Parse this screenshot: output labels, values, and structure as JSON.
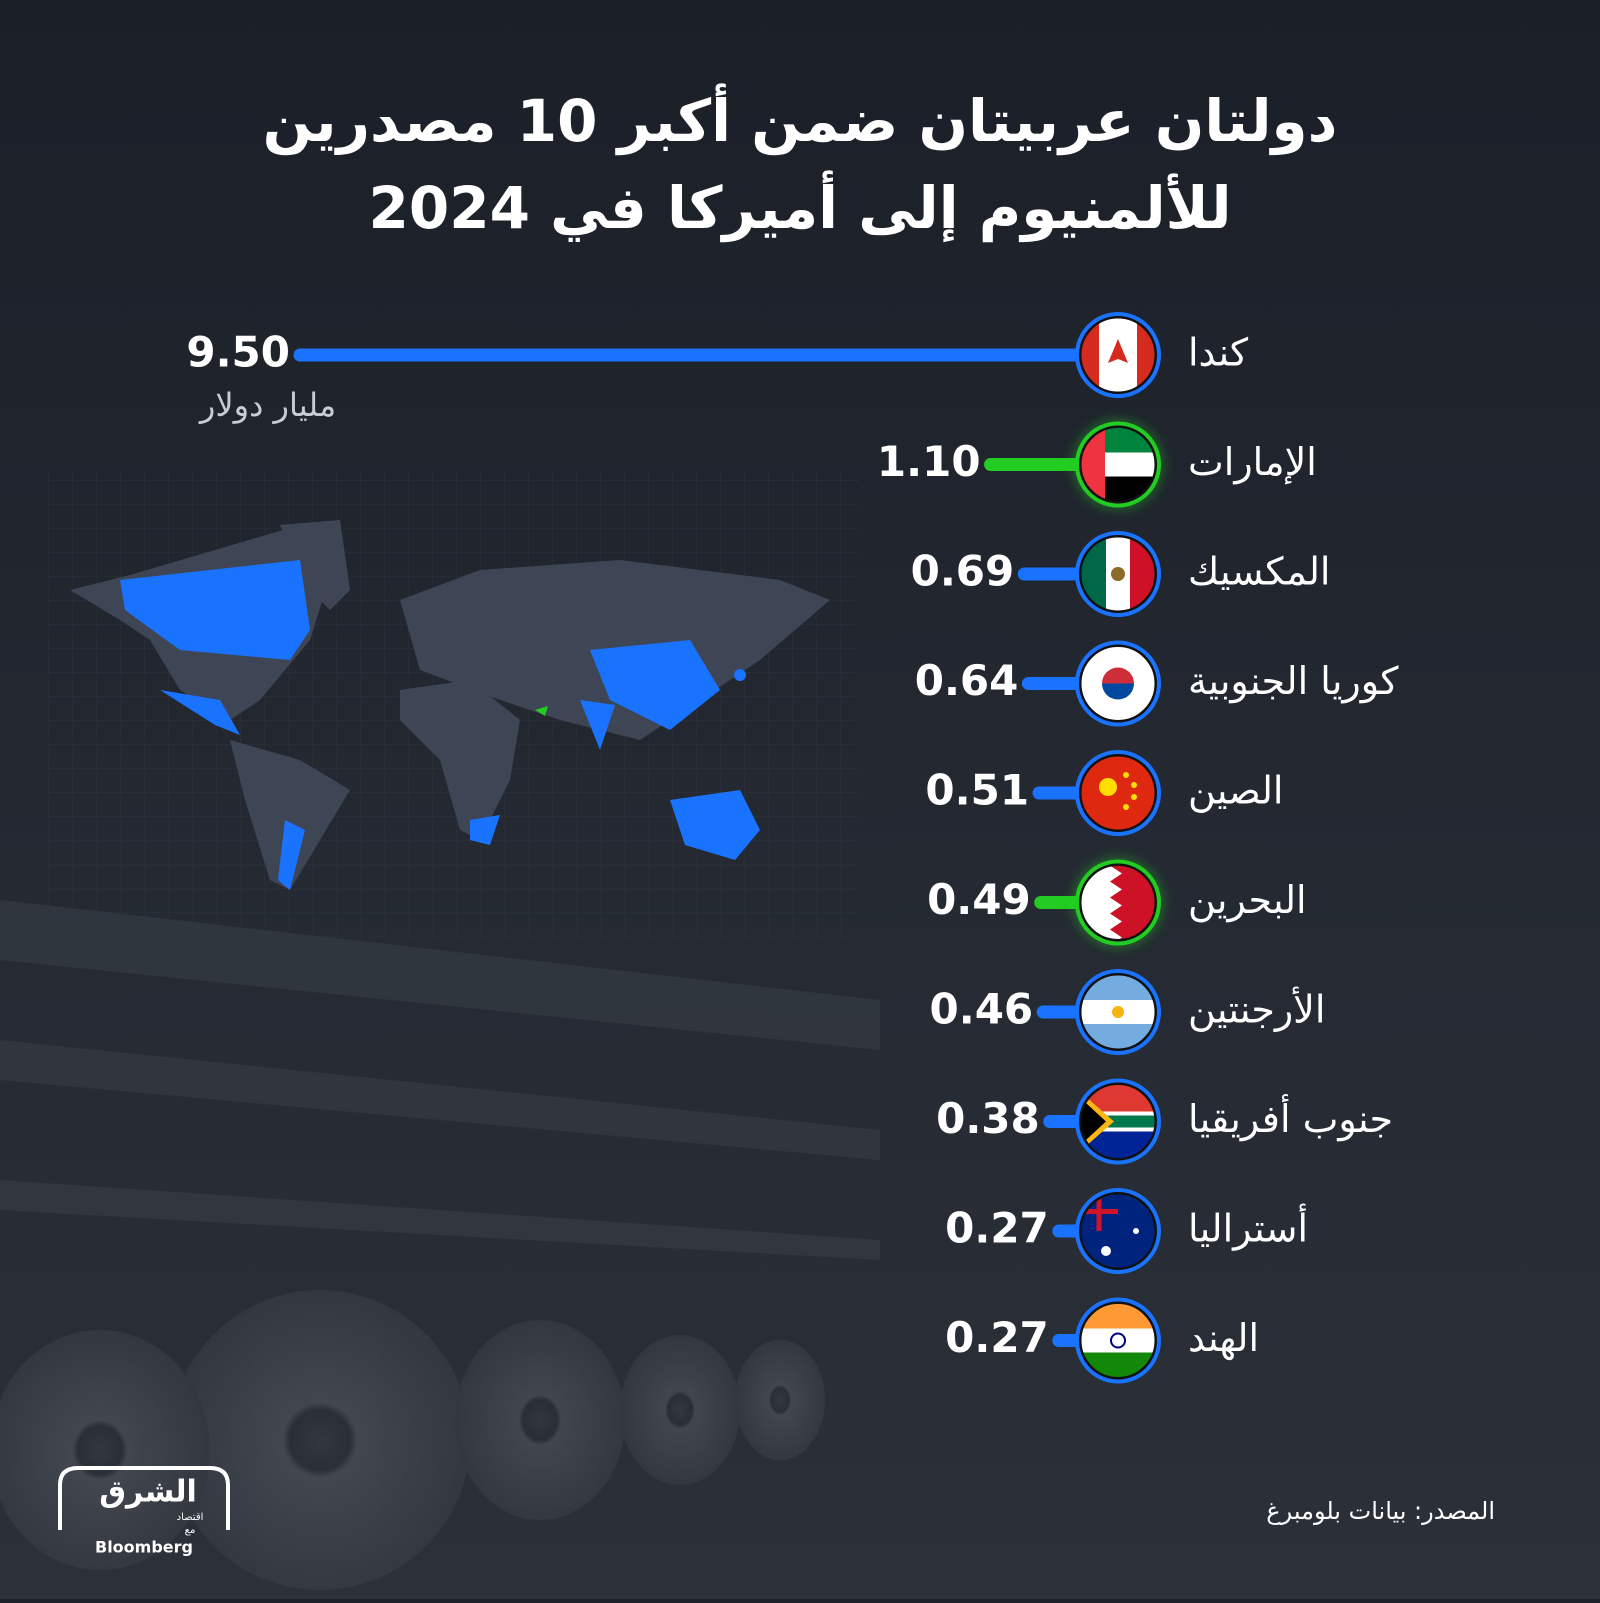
{
  "chart_data": {
    "type": "bar",
    "title": [
      "دولتان عربيتان ضمن أكبر 10 مصدرين",
      "للألمنيوم إلى أميركا في 2024"
    ],
    "unit": "مليار دولار",
    "categories": [
      "كندا",
      "الإمارات",
      "المكسيك",
      "كوريا الجنوبية",
      "الصين",
      "البحرين",
      "الأرجنتين",
      "جنوب أفريقيا",
      "أستراليا",
      "الهند"
    ],
    "values": [
      9.5,
      1.1,
      0.69,
      0.64,
      0.51,
      0.49,
      0.46,
      0.38,
      0.27,
      0.27
    ],
    "value_labels": [
      "9.50",
      "1.10",
      "0.69",
      "0.64",
      "0.51",
      "0.49",
      "0.46",
      "0.38",
      "0.27",
      "0.27"
    ],
    "colors": [
      "#1a73ff",
      "#22cc22",
      "#1a73ff",
      "#1a73ff",
      "#1a73ff",
      "#22cc22",
      "#1a73ff",
      "#1a73ff",
      "#1a73ff",
      "#1a73ff"
    ],
    "source": "المصدر: بيانات بلومبرغ"
  },
  "logo": {
    "name": "الشرق",
    "tagline": "اقتصاد",
    "with": "مع",
    "partner": "Bloomberg"
  }
}
